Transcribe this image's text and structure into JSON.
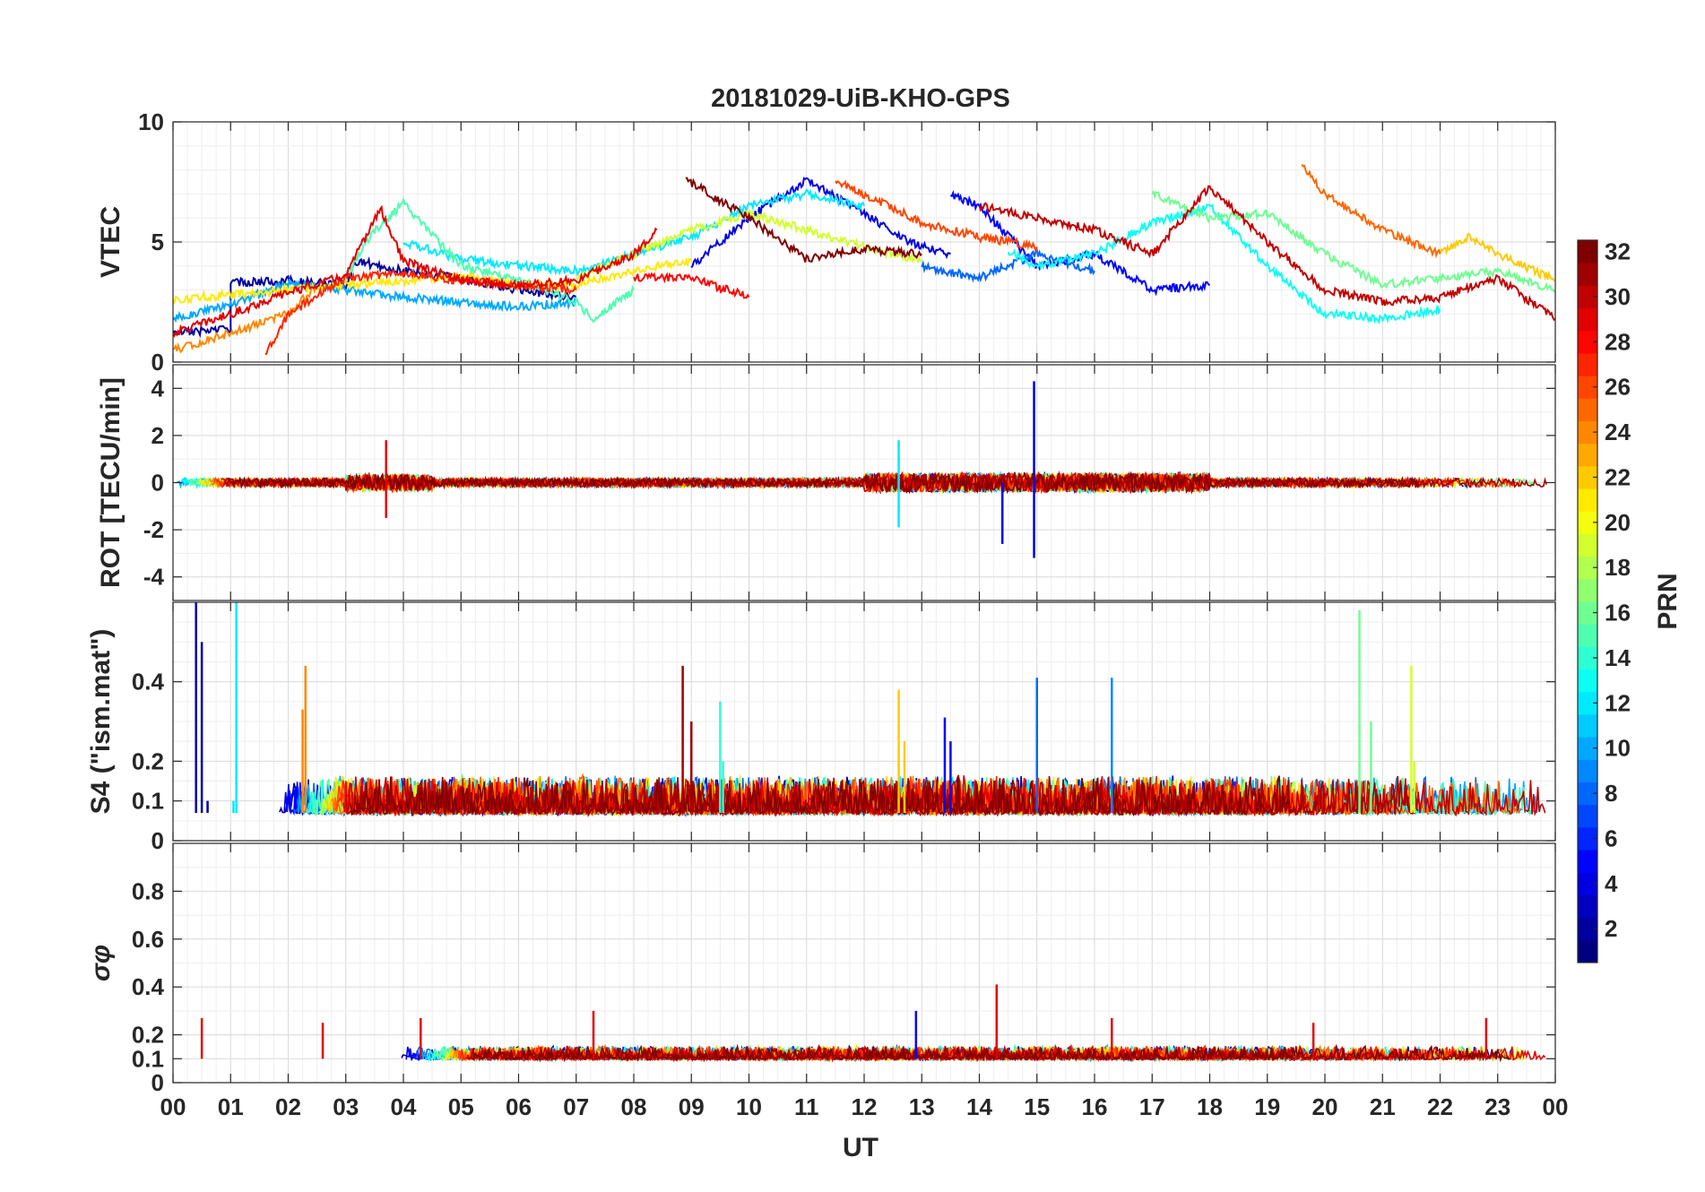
{
  "chart_data": {
    "type": "line",
    "title": "20181029-UiB-KHO-GPS",
    "xlabel": "UT",
    "xlim": [
      0,
      24
    ],
    "x_tick_labels": [
      "00",
      "01",
      "02",
      "03",
      "04",
      "05",
      "06",
      "07",
      "08",
      "09",
      "10",
      "11",
      "12",
      "13",
      "14",
      "15",
      "16",
      "17",
      "18",
      "19",
      "20",
      "21",
      "22",
      "23",
      "00"
    ],
    "colorbar": {
      "label": "PRN",
      "range": [
        1,
        32
      ],
      "tick_labels": [
        "2",
        "4",
        "6",
        "8",
        "10",
        "12",
        "14",
        "16",
        "18",
        "20",
        "22",
        "24",
        "26",
        "28",
        "30",
        "32"
      ],
      "colormap": "jet"
    },
    "panels": [
      {
        "name": "vtec",
        "ylabel": "VTEC",
        "ylim": [
          0,
          10
        ],
        "ticks": [
          0,
          5,
          10
        ],
        "tick_labels": [
          "0",
          "5",
          "10"
        ],
        "series": [
          {
            "prn": 2,
            "values": [
              [
                0,
                1.2
              ],
              [
                1,
                1.4
              ],
              [
                1,
                3.3
              ],
              [
                2,
                3.4
              ],
              [
                3,
                3.2
              ],
              [
                3.2,
                4.2
              ],
              [
                4,
                3.8
              ],
              [
                5,
                3.5
              ],
              [
                6,
                3.0
              ],
              [
                7,
                2.7
              ]
            ]
          },
          {
            "prn": 4,
            "values": [
              [
                9,
                4.0
              ],
              [
                10,
                6.0
              ],
              [
                11,
                7.6
              ],
              [
                12,
                6.2
              ],
              [
                12.8,
                5.0
              ],
              [
                13.5,
                4.5
              ]
            ]
          },
          {
            "prn": 5,
            "values": [
              [
                13.5,
                7.0
              ],
              [
                14,
                6.5
              ],
              [
                15,
                4.0
              ],
              [
                16,
                4.5
              ],
              [
                17,
                3.0
              ],
              [
                18,
                3.2
              ]
            ]
          },
          {
            "prn": 8,
            "values": [
              [
                13,
                4.0
              ],
              [
                14,
                3.5
              ],
              [
                15,
                4.5
              ],
              [
                16,
                3.8
              ]
            ]
          },
          {
            "prn": 10,
            "values": [
              [
                0,
                1.8
              ],
              [
                1,
                2.4
              ],
              [
                2,
                3.3
              ],
              [
                3,
                3.0
              ],
              [
                4,
                2.7
              ],
              [
                5,
                2.5
              ],
              [
                6,
                2.3
              ],
              [
                7,
                2.5
              ]
            ]
          },
          {
            "prn": 12,
            "values": [
              [
                4,
                5.0
              ],
              [
                5,
                4.3
              ],
              [
                6,
                4.0
              ],
              [
                7,
                3.8
              ],
              [
                8,
                4.5
              ],
              [
                9,
                5.2
              ],
              [
                10,
                6.5
              ],
              [
                11,
                7.0
              ],
              [
                12,
                6.5
              ]
            ]
          },
          {
            "prn": 13,
            "values": [
              [
                14.5,
                4.6
              ],
              [
                15,
                4.0
              ],
              [
                16,
                4.5
              ],
              [
                17,
                5.8
              ],
              [
                18,
                6.5
              ],
              [
                19,
                4.0
              ],
              [
                20,
                2.0
              ],
              [
                21,
                1.8
              ],
              [
                22,
                2.2
              ]
            ]
          },
          {
            "prn": 15,
            "values": [
              [
                3,
                3.5
              ],
              [
                3.5,
                5.5
              ],
              [
                4,
                6.6
              ],
              [
                5,
                4.0
              ],
              [
                6,
                3.4
              ],
              [
                7,
                2.5
              ],
              [
                7.3,
                1.8
              ],
              [
                8,
                3.0
              ]
            ]
          },
          {
            "prn": 16,
            "values": [
              [
                17,
                7.0
              ],
              [
                18,
                6.0
              ],
              [
                19,
                6.2
              ],
              [
                20,
                4.5
              ],
              [
                21,
                3.2
              ],
              [
                22,
                3.5
              ],
              [
                23,
                3.8
              ],
              [
                24,
                3.0
              ]
            ]
          },
          {
            "prn": 19,
            "values": [
              [
                7,
                3.5
              ],
              [
                8,
                4.5
              ],
              [
                9,
                5.5
              ],
              [
                10,
                6.2
              ],
              [
                11,
                5.5
              ],
              [
                12,
                4.8
              ],
              [
                13,
                4.2
              ]
            ]
          },
          {
            "prn": 21,
            "values": [
              [
                0,
                2.6
              ],
              [
                1,
                2.8
              ],
              [
                2,
                3.0
              ],
              [
                3,
                3.2
              ],
              [
                4,
                3.4
              ],
              [
                5,
                3.6
              ],
              [
                6,
                3.2
              ],
              [
                7,
                3.2
              ],
              [
                8,
                3.8
              ],
              [
                9,
                4.2
              ]
            ]
          },
          {
            "prn": 22,
            "values": [
              [
                22,
                4.5
              ],
              [
                22.5,
                5.2
              ],
              [
                23,
                4.5
              ],
              [
                24,
                3.4
              ]
            ]
          },
          {
            "prn": 24,
            "values": [
              [
                0,
                0.5
              ],
              [
                1,
                1.2
              ],
              [
                2,
                2.0
              ],
              [
                2.5,
                3.2
              ]
            ]
          },
          {
            "prn": 25,
            "values": [
              [
                19.6,
                8.2
              ],
              [
                20,
                7.0
              ],
              [
                21,
                5.5
              ],
              [
                22,
                4.5
              ]
            ]
          },
          {
            "prn": 26,
            "values": [
              [
                11.5,
                7.5
              ],
              [
                12,
                7.0
              ],
              [
                13,
                5.8
              ],
              [
                14,
                5.2
              ],
              [
                15,
                4.8
              ]
            ]
          },
          {
            "prn": 27,
            "values": [
              [
                1.6,
                0.3
              ],
              [
                2,
                2.0
              ],
              [
                3,
                3.5
              ],
              [
                4,
                3.7
              ],
              [
                5,
                3.4
              ],
              [
                6,
                3.2
              ],
              [
                7,
                3.0
              ]
            ]
          },
          {
            "prn": 28,
            "values": [
              [
                8,
                3.5
              ],
              [
                9,
                3.5
              ],
              [
                10,
                2.7
              ]
            ]
          },
          {
            "prn": 29,
            "values": [
              [
                0,
                1.2
              ],
              [
                1,
                2.0
              ],
              [
                2,
                2.9
              ],
              [
                3,
                3.6
              ],
              [
                3.6,
                6.4
              ],
              [
                4,
                4.2
              ],
              [
                5,
                3.4
              ],
              [
                6,
                3.2
              ],
              [
                7,
                3.4
              ],
              [
                8,
                4.5
              ],
              [
                8.4,
                5.5
              ]
            ]
          },
          {
            "prn": 30,
            "values": [
              [
                14,
                6.5
              ],
              [
                15,
                6.0
              ],
              [
                16,
                5.5
              ],
              [
                17,
                4.5
              ],
              [
                18,
                7.3
              ],
              [
                19,
                5.0
              ],
              [
                20,
                3.0
              ],
              [
                21,
                2.5
              ],
              [
                22,
                2.7
              ],
              [
                23,
                3.5
              ],
              [
                24,
                1.8
              ]
            ]
          },
          {
            "prn": 32,
            "values": [
              [
                8.9,
                7.6
              ],
              [
                10,
                6.0
              ],
              [
                11,
                4.3
              ],
              [
                12,
                4.7
              ],
              [
                13,
                4.5
              ]
            ]
          }
        ]
      },
      {
        "name": "rot",
        "ylabel": "ROT [TECU/min]",
        "ylim": [
          -5,
          5
        ],
        "ticks": [
          -4,
          -2,
          0,
          2,
          4
        ],
        "tick_labels": [
          "-4",
          "-2",
          "0",
          "2",
          "4"
        ],
        "series": [
          {
            "prn": 4,
            "values": [
              [
                14.95,
                4.3
              ],
              [
                14.95,
                -3.2
              ],
              [
                14.4,
                -2.6
              ]
            ]
          },
          {
            "prn": 12,
            "values": [
              [
                12.6,
                1.8
              ],
              [
                12.6,
                -1.9
              ]
            ]
          },
          {
            "prn": 29,
            "values": [
              [
                3.7,
                1.8
              ],
              [
                3.7,
                -1.5
              ]
            ]
          }
        ]
      },
      {
        "name": "s4",
        "ylabel": "S4 (\"ism.mat\")",
        "ylim": [
          0,
          0.6
        ],
        "ticks": [
          0,
          0.1,
          0.2,
          0.4
        ],
        "tick_labels": [
          "0",
          "0.1",
          "0.2",
          "0.4"
        ],
        "series": [
          {
            "prn": 2,
            "values": [
              [
                0.4,
                0.6
              ],
              [
                0.5,
                0.5
              ],
              [
                0.6,
                0.1
              ]
            ]
          },
          {
            "prn": 12,
            "values": [
              [
                1.1,
                0.6
              ],
              [
                1.05,
                0.1
              ]
            ]
          },
          {
            "prn": 24,
            "values": [
              [
                2.3,
                0.44
              ],
              [
                2.25,
                0.33
              ]
            ]
          },
          {
            "prn": 31,
            "values": [
              [
                8.85,
                0.44
              ],
              [
                9,
                0.3
              ]
            ]
          },
          {
            "prn": 14,
            "values": [
              [
                9.5,
                0.35
              ],
              [
                9.55,
                0.2
              ]
            ]
          },
          {
            "prn": 22,
            "values": [
              [
                12.6,
                0.38
              ],
              [
                12.7,
                0.25
              ]
            ]
          },
          {
            "prn": 5,
            "values": [
              [
                13.4,
                0.31
              ],
              [
                13.5,
                0.25
              ]
            ]
          },
          {
            "prn": 8,
            "values": [
              [
                15,
                0.41
              ],
              [
                15,
                0.1
              ]
            ]
          },
          {
            "prn": 9,
            "values": [
              [
                16.3,
                0.41
              ],
              [
                16.3,
                0.1
              ]
            ]
          },
          {
            "prn": 16,
            "values": [
              [
                20.6,
                0.58
              ],
              [
                20.8,
                0.3
              ]
            ]
          },
          {
            "prn": 19,
            "values": [
              [
                21.5,
                0.44
              ],
              [
                21.55,
                0.2
              ]
            ]
          }
        ]
      },
      {
        "name": "sigma_phi",
        "ylabel": "σφ",
        "ylim": [
          0,
          1
        ],
        "ticks": [
          0,
          0.1,
          0.2,
          0.4,
          0.6,
          0.8
        ],
        "tick_labels": [
          "0",
          "0.1",
          "0.2",
          "0.4",
          "0.6",
          "0.8"
        ],
        "series": [
          {
            "prn": 29,
            "values": [
              [
                0.5,
                0.27
              ],
              [
                2.6,
                0.25
              ],
              [
                4.3,
                0.27
              ],
              [
                7.3,
                0.3
              ],
              [
                14.3,
                0.41
              ],
              [
                16.3,
                0.27
              ],
              [
                19.8,
                0.25
              ],
              [
                22.8,
                0.27
              ]
            ]
          },
          {
            "prn": 5,
            "values": [
              [
                12.9,
                0.3
              ]
            ]
          }
        ]
      }
    ]
  }
}
